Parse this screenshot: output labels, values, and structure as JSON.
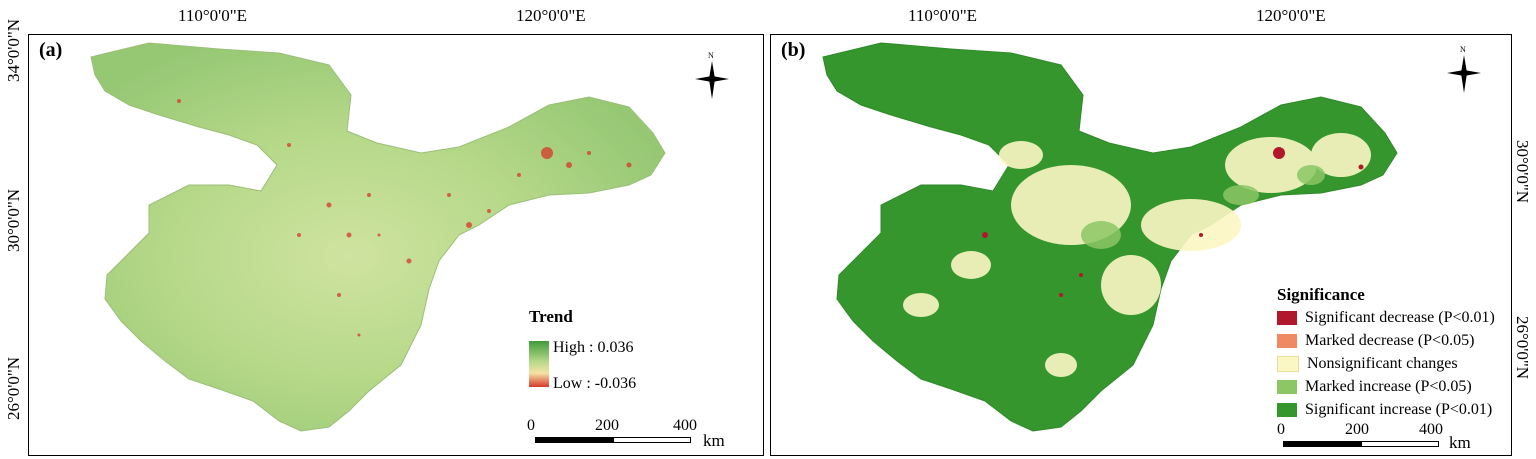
{
  "top_coords": [
    "110°0'0\"E",
    "120°0'0\"E"
  ],
  "left_coords": [
    "34°0'0\"N",
    "30°0'0\"N",
    "26°0'0\"N"
  ],
  "right_coords": [
    "30°0'0\"N",
    "26°0'0\"N"
  ],
  "panel_a": {
    "label": "(a)",
    "north_label": "N",
    "legend": {
      "title": "Trend",
      "high_label": "High : 0.036",
      "low_label": "Low : -0.036",
      "high_color": "#3f9b3a",
      "low_color": "#d7382a"
    },
    "scale": {
      "ticks": [
        "0",
        "200",
        "400"
      ],
      "unit": "km"
    }
  },
  "panel_b": {
    "label": "(b)",
    "north_label": "N",
    "legend": {
      "title": "Significance",
      "items": [
        {
          "label": "Significant decrease (P<0.01)",
          "color": "#b2182b"
        },
        {
          "label": "Marked decrease (P<0.05)",
          "color": "#ef8a62"
        },
        {
          "label": "Nonsignificant changes",
          "color": "#fbf7c4"
        },
        {
          "label": "Marked increase (P<0.05)",
          "color": "#8cc665"
        },
        {
          "label": "Significant increase (P<0.01)",
          "color": "#35962d"
        }
      ]
    },
    "scale": {
      "ticks": [
        "0",
        "200",
        "400"
      ],
      "unit": "km"
    }
  }
}
